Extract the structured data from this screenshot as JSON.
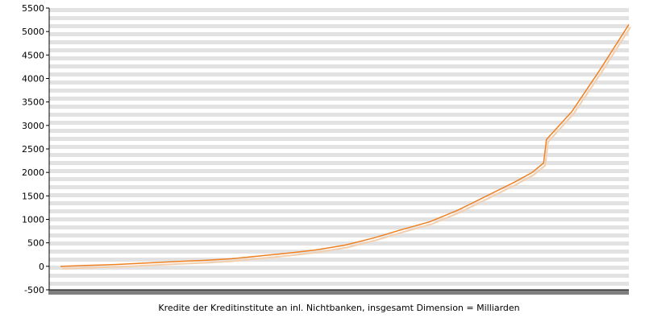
{
  "chart_data": {
    "type": "line",
    "title": "",
    "xlabel": "Kredite der Kreditinstitute an inl. Nichtbanken, insgesamt Dimension = Milliarden",
    "ylabel": "",
    "ylim": [
      -500,
      5500
    ],
    "yticks": [
      -500,
      0,
      500,
      1000,
      1500,
      2000,
      2500,
      3000,
      3500,
      4000,
      4500,
      5000,
      5500
    ],
    "grid": true,
    "legend": "none",
    "x": [
      0.0,
      0.05,
      0.1,
      0.15,
      0.2,
      0.25,
      0.3,
      0.35,
      0.4,
      0.45,
      0.5,
      0.55,
      0.6,
      0.65,
      0.7,
      0.75,
      0.8,
      0.83,
      0.85,
      0.855,
      0.9,
      0.95,
      1.0
    ],
    "series": [
      {
        "values": [
          0,
          20,
          40,
          70,
          100,
          125,
          160,
          220,
          280,
          350,
          450,
          600,
          780,
          950,
          1200,
          1500,
          1800,
          2000,
          2200,
          2700,
          3300,
          4200,
          5150
        ],
        "color": "#f08020"
      }
    ],
    "colors": {
      "line": "#f08020",
      "line_shadow": "#f3cfae",
      "band": "#e2e2e2",
      "axis": "#000000"
    }
  }
}
